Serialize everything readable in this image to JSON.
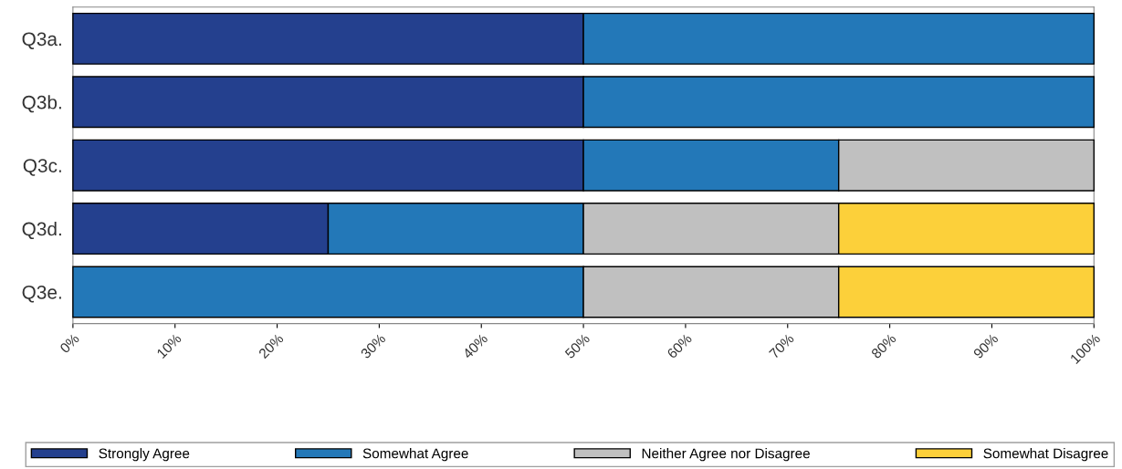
{
  "chart_data": {
    "type": "bar",
    "orientation": "horizontal",
    "stacked": true,
    "categories": [
      "Q3a.",
      "Q3b.",
      "Q3c.",
      "Q3d.",
      "Q3e."
    ],
    "series": [
      {
        "name": "Strongly Agree",
        "color": "#24408e",
        "values": [
          50,
          50,
          50,
          25,
          null
        ]
      },
      {
        "name": "Somewhat Agree",
        "color": "#2378b8",
        "values": [
          50,
          50,
          25,
          25,
          50
        ]
      },
      {
        "name": "Neither Agree nor Disagree",
        "color": "#c0c0c0",
        "values": [
          null,
          null,
          25,
          25,
          25
        ]
      },
      {
        "name": "Somewhat Disagree",
        "color": "#fcd03a",
        "values": [
          null,
          null,
          null,
          25,
          25
        ]
      }
    ],
    "xlim": [
      0,
      100
    ],
    "xticks": [
      {
        "value": 0,
        "label": "0%"
      },
      {
        "value": 10,
        "label": "10%"
      },
      {
        "value": 20,
        "label": "20%"
      },
      {
        "value": 30,
        "label": "30%"
      },
      {
        "value": 40,
        "label": "40%"
      },
      {
        "value": 50,
        "label": "50%"
      },
      {
        "value": 60,
        "label": "60%"
      },
      {
        "value": 70,
        "label": "70%"
      },
      {
        "value": 80,
        "label": "80%"
      },
      {
        "value": 90,
        "label": "90%"
      },
      {
        "value": 100,
        "label": "100%"
      }
    ],
    "legend": "bottom",
    "grid": false
  }
}
